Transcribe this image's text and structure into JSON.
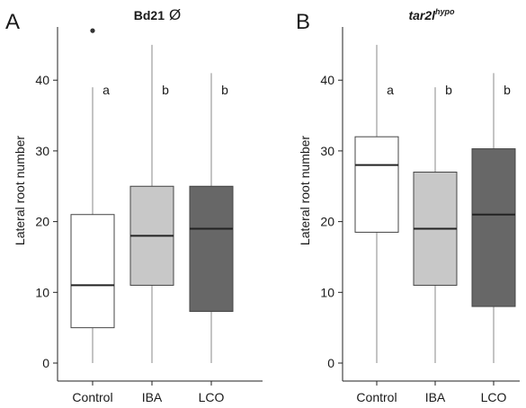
{
  "chart_data": [
    {
      "type": "box",
      "panel_label": "A",
      "title": "Bd21",
      "title_symbol": "Ø",
      "ylabel": "Lateral root number",
      "ylim": [
        0,
        46
      ],
      "yticks": [
        0,
        10,
        20,
        30,
        40
      ],
      "categories": [
        "Control",
        "IBA",
        "LCO"
      ],
      "boxes": [
        {
          "category": "Control",
          "min": 0,
          "q1": 5,
          "median": 11,
          "q3": 21,
          "max": 39,
          "outliers": [
            47
          ],
          "color": "#ffffff",
          "significance": "a"
        },
        {
          "category": "IBA",
          "min": 0,
          "q1": 11,
          "median": 18,
          "q3": 25,
          "max": 45,
          "outliers": [],
          "color": "#c8c8c8",
          "significance": "b"
        },
        {
          "category": "LCO",
          "min": 0,
          "q1": 7.3,
          "median": 19,
          "q3": 25,
          "max": 41,
          "outliers": [],
          "color": "#676767",
          "significance": "b"
        }
      ]
    },
    {
      "type": "box",
      "panel_label": "B",
      "title": "tar2l",
      "title_sup": "hypo",
      "ylabel": "Lateral root number",
      "ylim": [
        0,
        46
      ],
      "yticks": [
        0,
        10,
        20,
        30,
        40
      ],
      "categories": [
        "Control",
        "IBA",
        "LCO"
      ],
      "boxes": [
        {
          "category": "Control",
          "min": 0,
          "q1": 18.5,
          "median": 28,
          "q3": 32,
          "max": 45,
          "outliers": [],
          "color": "#ffffff",
          "significance": "a"
        },
        {
          "category": "IBA",
          "min": 0,
          "q1": 11,
          "median": 19,
          "q3": 27,
          "max": 39,
          "outliers": [],
          "color": "#c8c8c8",
          "significance": "b"
        },
        {
          "category": "LCO",
          "min": 0,
          "q1": 8,
          "median": 21,
          "q3": 30.3,
          "max": 41,
          "outliers": [],
          "color": "#676767",
          "significance": "b"
        }
      ]
    }
  ]
}
